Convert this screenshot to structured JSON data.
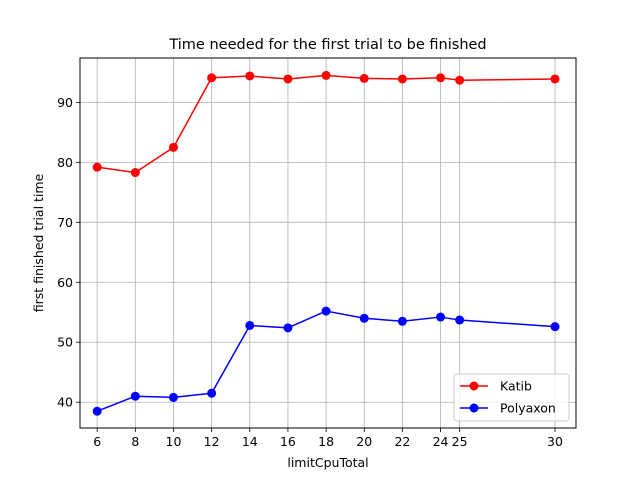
{
  "chart_data": {
    "type": "line",
    "title": "Time needed for the first trial to be finished",
    "xlabel": "limitCpuTotal",
    "ylabel": "first finished trial time",
    "xlim": [
      5.1,
      31.1
    ],
    "ylim": [
      35.7,
      97.4
    ],
    "x_ticks": [
      6,
      8,
      10,
      12,
      14,
      16,
      18,
      20,
      22,
      24,
      25,
      30
    ],
    "y_ticks": [
      40,
      50,
      60,
      70,
      80,
      90
    ],
    "grid": true,
    "legend_position": "lower-right",
    "x": [
      6,
      8,
      10,
      12,
      14,
      16,
      18,
      20,
      22,
      24,
      25,
      30
    ],
    "series": [
      {
        "name": "Katib",
        "color": "#ff0000",
        "marker": "circle",
        "values": [
          79.2,
          78.3,
          82.5,
          94.1,
          94.4,
          93.9,
          94.5,
          94.0,
          93.9,
          94.1,
          93.7,
          93.9
        ]
      },
      {
        "name": "Polyaxon",
        "color": "#0000ff",
        "marker": "circle",
        "values": [
          38.5,
          41.0,
          40.8,
          41.5,
          52.8,
          52.4,
          55.2,
          54.0,
          53.5,
          54.2,
          53.7,
          52.6
        ]
      }
    ]
  }
}
